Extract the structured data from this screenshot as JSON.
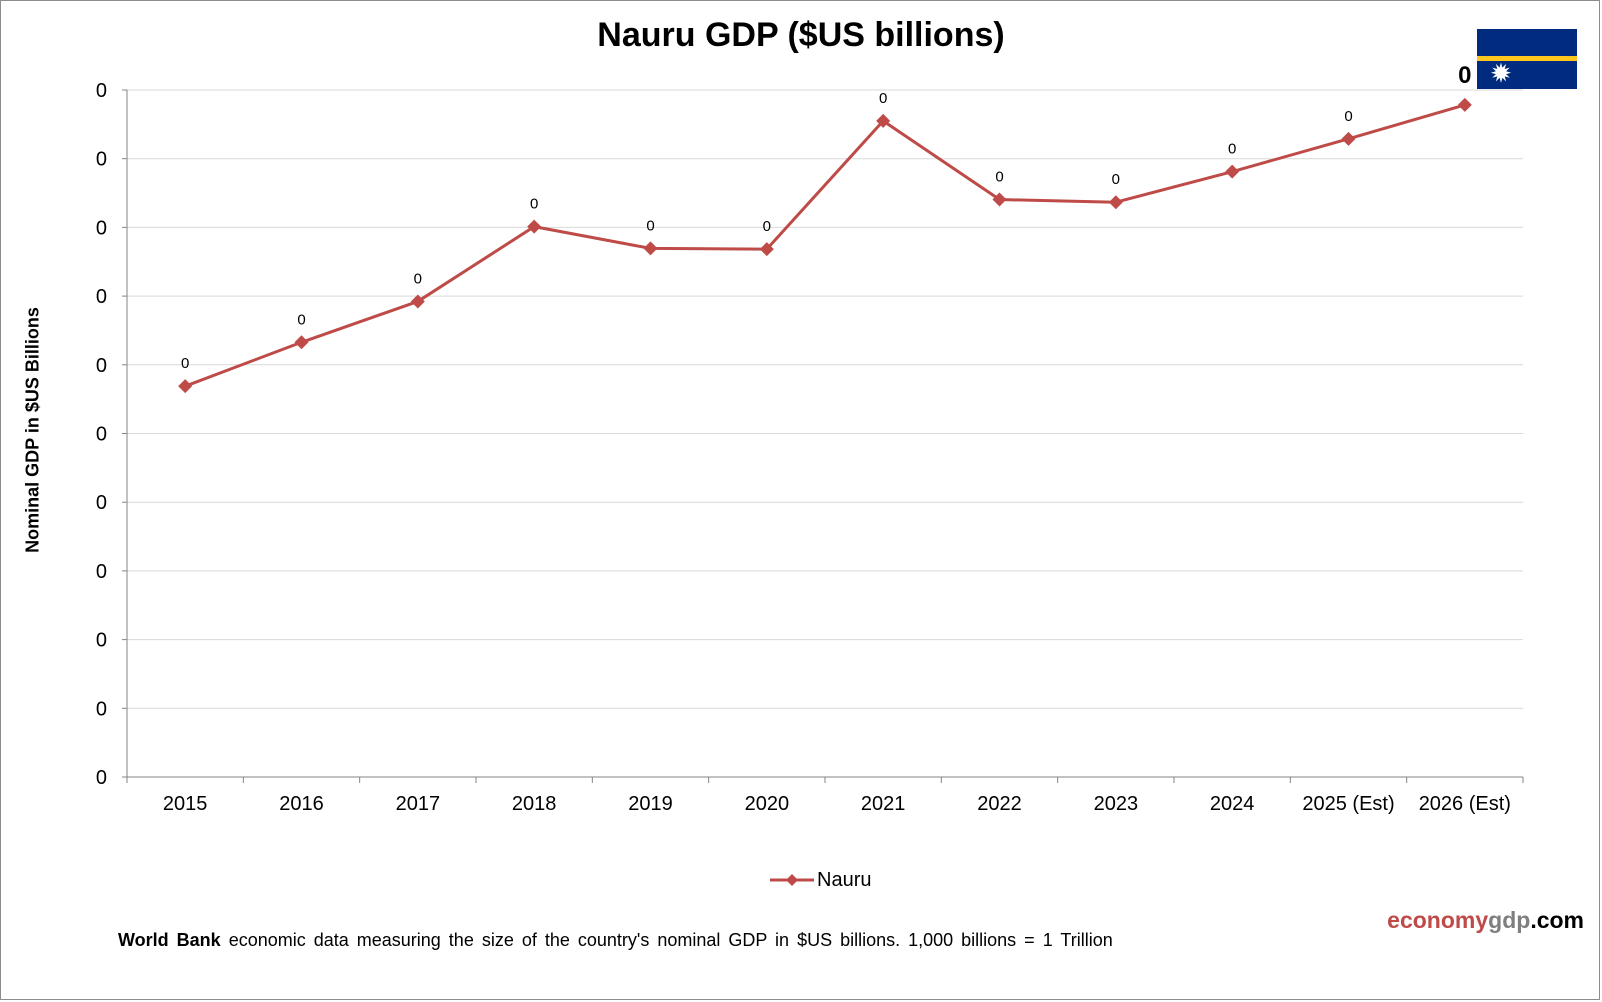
{
  "chart_data": {
    "type": "line",
    "title": "Nauru GDP ($US billions)",
    "ylabel": "Nominal GDP in $US Billions",
    "xlabel": "",
    "categories": [
      "2015",
      "2016",
      "2017",
      "2018",
      "2019",
      "2020",
      "2021",
      "2022",
      "2023",
      "2024",
      "2025 (Est)",
      "2026 (Est)"
    ],
    "series": [
      {
        "name": "Nauru",
        "values": [
          0.1024,
          0.1139,
          0.1246,
          0.1442,
          0.1385,
          0.1383,
          0.1719,
          0.1513,
          0.1506,
          0.1586,
          0.1672,
          0.1761
        ],
        "data_labels": [
          "0",
          "0",
          "0",
          "0",
          "0",
          "0",
          "0",
          "0",
          "0",
          "0",
          "0",
          "0"
        ]
      }
    ],
    "ylim": [
      0.0,
      0.18
    ],
    "y_tick_labels": [
      "0",
      "0",
      "0",
      "0",
      "0",
      "0",
      "0",
      "0",
      "0",
      "0",
      "0"
    ],
    "grid": true,
    "legend": "bottom-center",
    "colors": {
      "line": "#be4b48",
      "grid": "#d9d9d9",
      "axis": "#868686"
    }
  },
  "flag": {
    "name": "flag-of-nauru",
    "colors": {
      "field": "#002b7f",
      "stripe": "#ffc61e",
      "star": "#ffffff"
    }
  },
  "branding": {
    "part1": "economy",
    "part2": "gdp",
    "part3": ".com"
  },
  "footnote": {
    "source": "World Bank",
    "text": " economic data  measuring  the size of the country's nominal  GDP in $US billions.  1,000 billions = 1 Trillion"
  }
}
